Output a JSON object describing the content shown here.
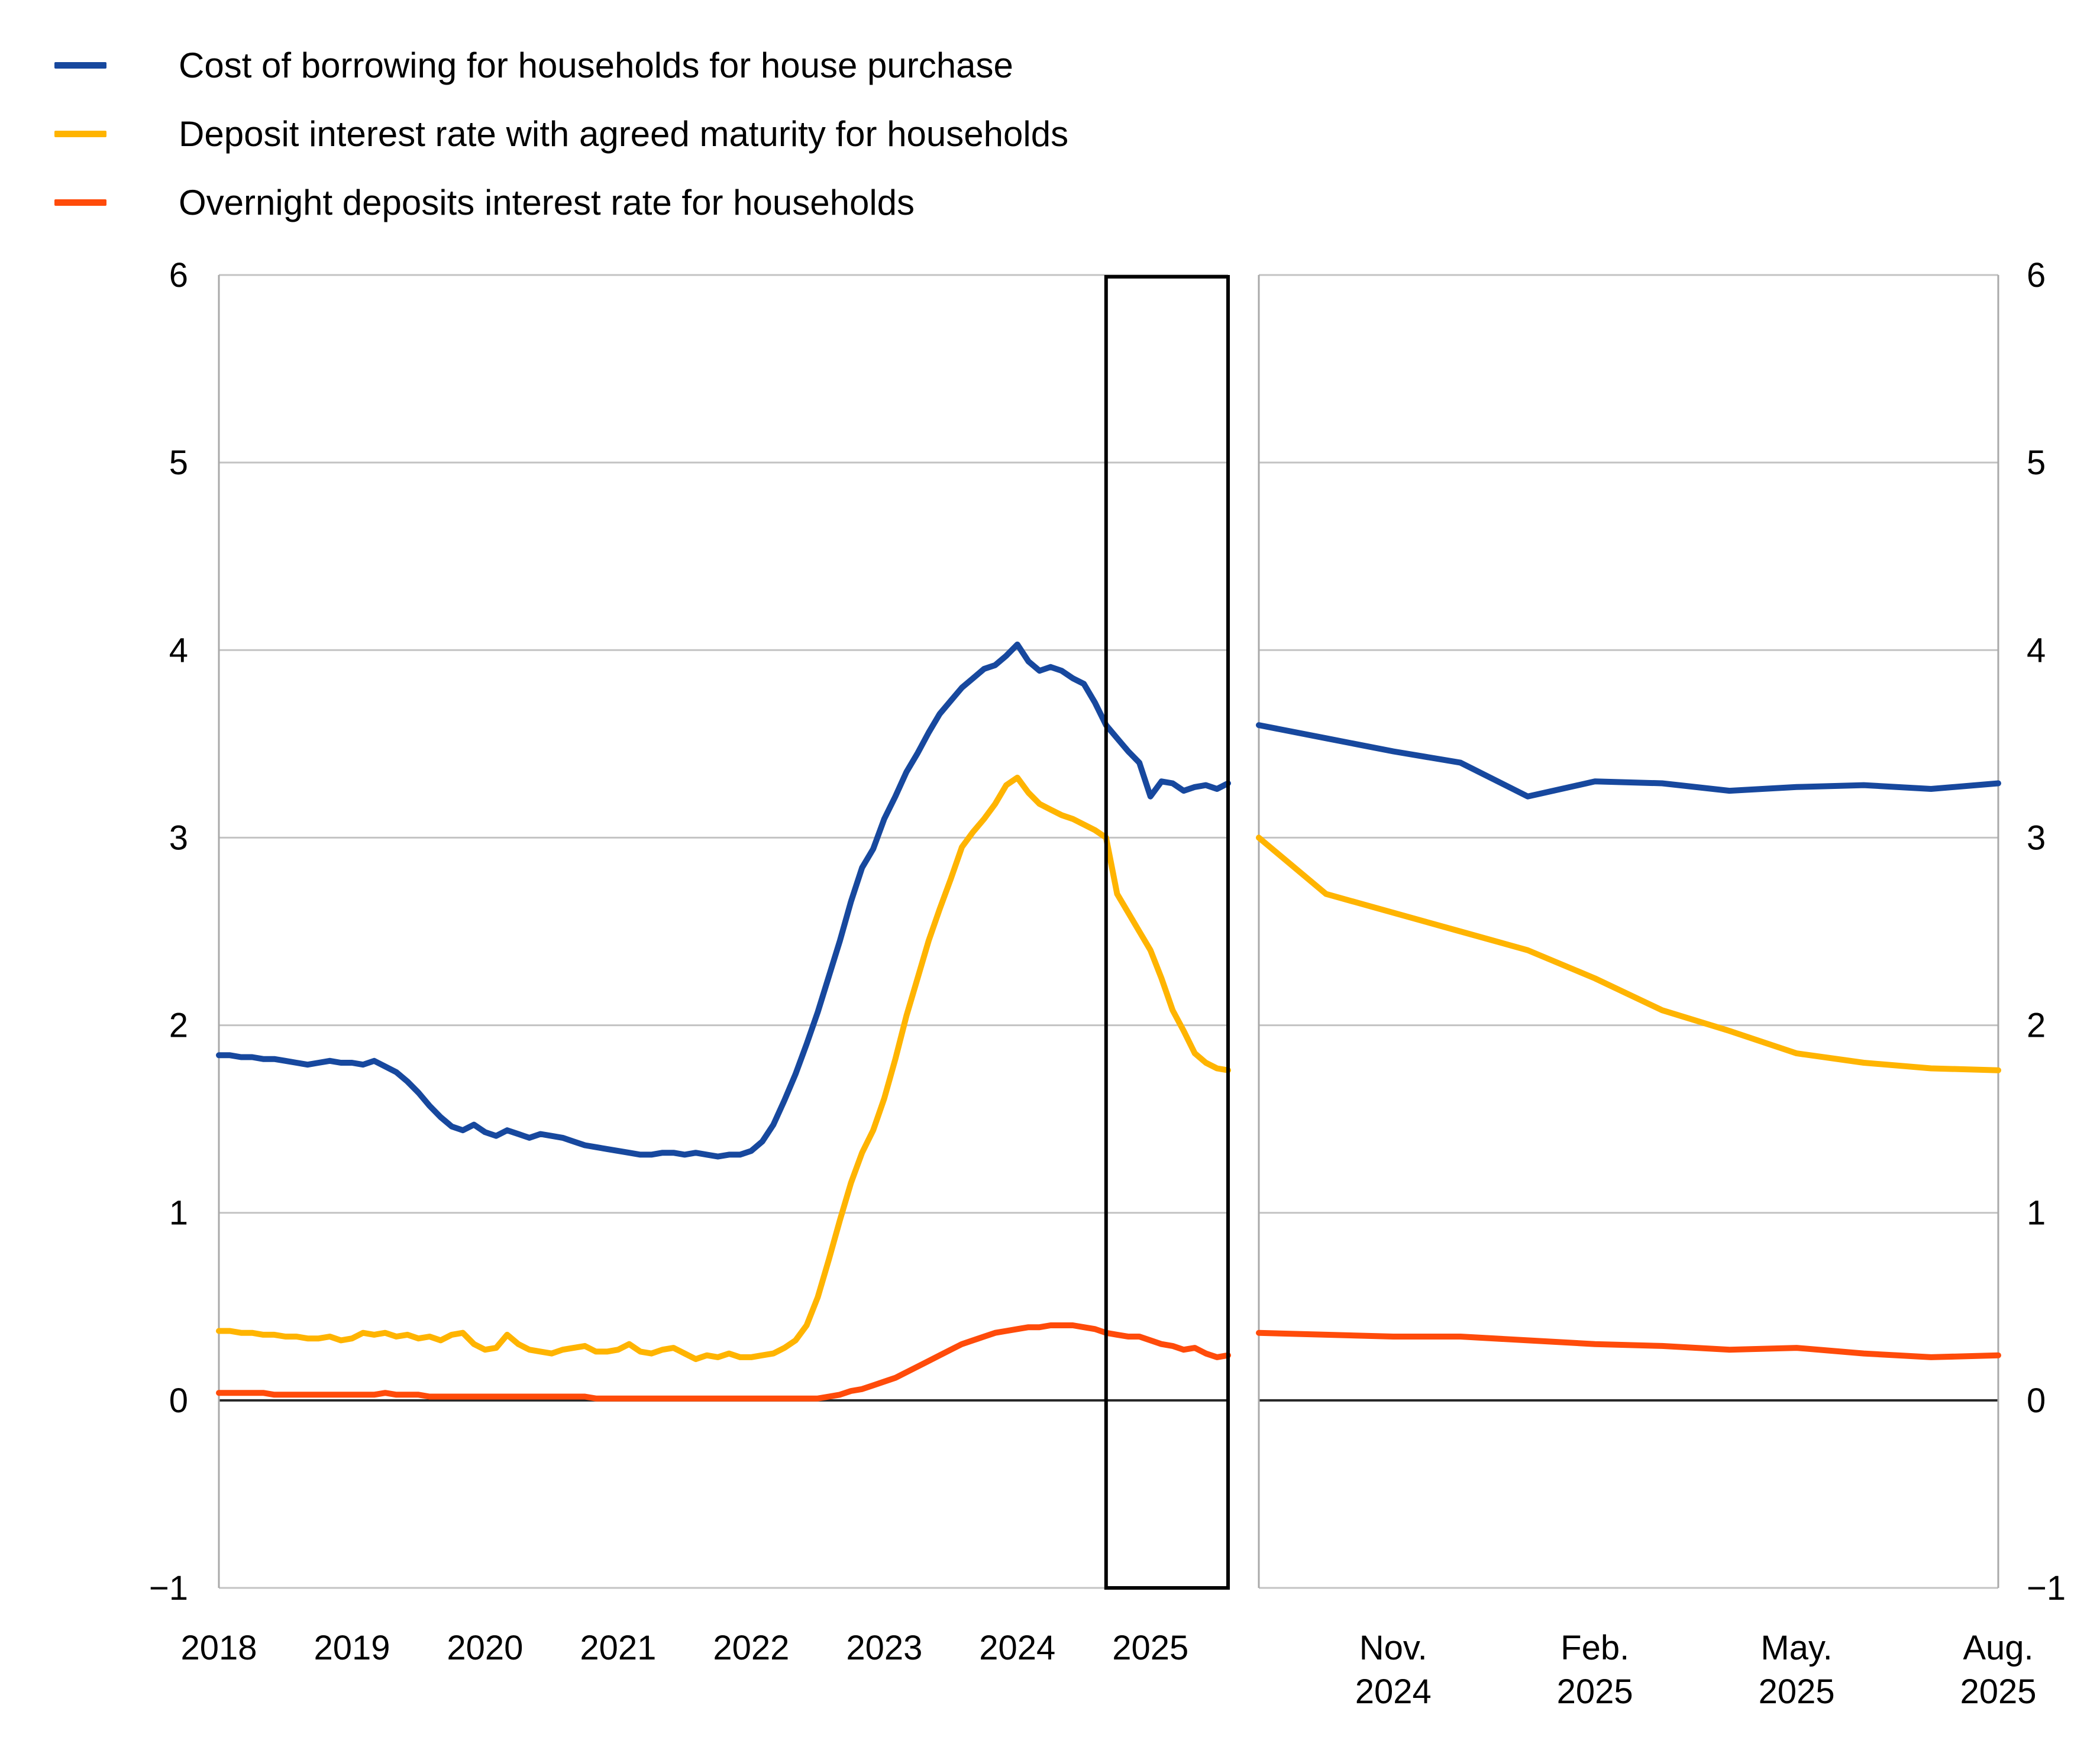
{
  "legend": {
    "items": [
      {
        "label": "Cost of borrowing for households for house purchase",
        "color": "#17489e"
      },
      {
        "label": "Deposit interest rate with agreed maturity for households",
        "color": "#ffb400"
      },
      {
        "label": "Overnight deposits interest rate for households",
        "color": "#ff4b0a"
      }
    ]
  },
  "chart_data": {
    "type": "line",
    "grid": true,
    "y_axis": {
      "min": -1,
      "max": 6,
      "tick_values": [
        6,
        5,
        4,
        3,
        2,
        1,
        0,
        -1
      ],
      "tick_labels": [
        "6",
        "5",
        "4",
        "3",
        "2",
        "1",
        "0",
        "−1"
      ],
      "zero_line": true,
      "labels_on_both_sides": true
    },
    "colors": {
      "blue": "#17489e",
      "yellow": "#ffb400",
      "red": "#ff4b0a"
    },
    "left_panel": {
      "x_range": "Jan 2018 to Aug 2025, monthly",
      "xtick_labels": [
        "2018",
        "2019",
        "2020",
        "2021",
        "2022",
        "2023",
        "2024",
        "2025"
      ],
      "xtick_month_indices": [
        0,
        12,
        24,
        36,
        48,
        60,
        72,
        84
      ],
      "highlight_box": {
        "start_month_index": 80,
        "end_month_index": 91
      },
      "series": [
        {
          "name": "cost-of-borrowing-house-purchase",
          "label": "Cost of borrowing for households for house purchase",
          "color": "#17489e",
          "values": [
            1.84,
            1.84,
            1.83,
            1.83,
            1.82,
            1.82,
            1.81,
            1.8,
            1.79,
            1.8,
            1.81,
            1.8,
            1.8,
            1.79,
            1.81,
            1.78,
            1.75,
            1.7,
            1.64,
            1.57,
            1.51,
            1.46,
            1.44,
            1.47,
            1.43,
            1.41,
            1.44,
            1.42,
            1.4,
            1.42,
            1.41,
            1.4,
            1.38,
            1.36,
            1.35,
            1.34,
            1.33,
            1.32,
            1.31,
            1.31,
            1.32,
            1.32,
            1.31,
            1.32,
            1.31,
            1.3,
            1.31,
            1.31,
            1.33,
            1.38,
            1.47,
            1.6,
            1.74,
            1.9,
            2.07,
            2.26,
            2.45,
            2.66,
            2.84,
            2.94,
            3.1,
            3.22,
            3.35,
            3.45,
            3.56,
            3.66,
            3.73,
            3.8,
            3.85,
            3.9,
            3.92,
            3.97,
            4.03,
            3.94,
            3.89,
            3.91,
            3.89,
            3.85,
            3.82,
            3.72,
            3.6,
            3.53,
            3.46,
            3.4,
            3.22,
            3.3,
            3.29,
            3.25,
            3.27,
            3.28,
            3.26,
            3.29
          ]
        },
        {
          "name": "deposit-rate-agreed-maturity",
          "label": "Deposit interest rate with agreed maturity for households",
          "color": "#ffb400",
          "values": [
            0.37,
            0.37,
            0.36,
            0.36,
            0.35,
            0.35,
            0.34,
            0.34,
            0.33,
            0.33,
            0.34,
            0.32,
            0.33,
            0.36,
            0.35,
            0.36,
            0.34,
            0.35,
            0.33,
            0.34,
            0.32,
            0.35,
            0.36,
            0.3,
            0.27,
            0.28,
            0.35,
            0.3,
            0.27,
            0.26,
            0.25,
            0.27,
            0.28,
            0.29,
            0.26,
            0.26,
            0.27,
            0.3,
            0.26,
            0.25,
            0.27,
            0.28,
            0.25,
            0.22,
            0.24,
            0.23,
            0.25,
            0.23,
            0.23,
            0.24,
            0.25,
            0.28,
            0.32,
            0.4,
            0.55,
            0.75,
            0.96,
            1.16,
            1.32,
            1.44,
            1.61,
            1.82,
            2.05,
            2.25,
            2.45,
            2.62,
            2.78,
            2.95,
            3.03,
            3.1,
            3.18,
            3.28,
            3.32,
            3.24,
            3.18,
            3.15,
            3.12,
            3.1,
            3.07,
            3.04,
            3.0,
            2.7,
            2.6,
            2.5,
            2.4,
            2.25,
            2.08,
            1.97,
            1.85,
            1.8,
            1.77,
            1.76
          ]
        },
        {
          "name": "overnight-deposits-rate",
          "label": "Overnight deposits interest rate for households",
          "color": "#ff4b0a",
          "values": [
            0.04,
            0.04,
            0.04,
            0.04,
            0.04,
            0.03,
            0.03,
            0.03,
            0.03,
            0.03,
            0.03,
            0.03,
            0.03,
            0.03,
            0.03,
            0.04,
            0.03,
            0.03,
            0.03,
            0.02,
            0.02,
            0.02,
            0.02,
            0.02,
            0.02,
            0.02,
            0.02,
            0.02,
            0.02,
            0.02,
            0.02,
            0.02,
            0.02,
            0.02,
            0.01,
            0.01,
            0.01,
            0.01,
            0.01,
            0.01,
            0.01,
            0.01,
            0.01,
            0.01,
            0.01,
            0.01,
            0.01,
            0.01,
            0.01,
            0.01,
            0.01,
            0.01,
            0.01,
            0.01,
            0.01,
            0.02,
            0.03,
            0.05,
            0.06,
            0.08,
            0.1,
            0.12,
            0.15,
            0.18,
            0.21,
            0.24,
            0.27,
            0.3,
            0.32,
            0.34,
            0.36,
            0.37,
            0.38,
            0.39,
            0.39,
            0.4,
            0.4,
            0.4,
            0.39,
            0.38,
            0.36,
            0.35,
            0.34,
            0.34,
            0.32,
            0.3,
            0.29,
            0.27,
            0.28,
            0.25,
            0.23,
            0.24
          ]
        }
      ]
    },
    "right_panel": {
      "x_range": "Sep 2024 to Aug 2025, monthly",
      "xtick_labels": [
        [
          "Nov.",
          "2024"
        ],
        [
          "Feb.",
          "2025"
        ],
        [
          "May.",
          "2025"
        ],
        [
          "Aug.",
          "2025"
        ]
      ],
      "xtick_month_indices": [
        2,
        5,
        8,
        11
      ],
      "series": [
        {
          "name": "cost-of-borrowing-house-purchase",
          "color": "#17489e",
          "values": [
            3.6,
            3.53,
            3.46,
            3.4,
            3.22,
            3.3,
            3.29,
            3.25,
            3.27,
            3.28,
            3.26,
            3.29
          ]
        },
        {
          "name": "deposit-rate-agreed-maturity",
          "color": "#ffb400",
          "values": [
            3.0,
            2.7,
            2.6,
            2.5,
            2.4,
            2.25,
            2.08,
            1.97,
            1.85,
            1.8,
            1.77,
            1.76
          ]
        },
        {
          "name": "overnight-deposits-rate",
          "color": "#ff4b0a",
          "values": [
            0.36,
            0.35,
            0.34,
            0.34,
            0.32,
            0.3,
            0.29,
            0.27,
            0.28,
            0.25,
            0.23,
            0.24
          ]
        }
      ]
    }
  }
}
